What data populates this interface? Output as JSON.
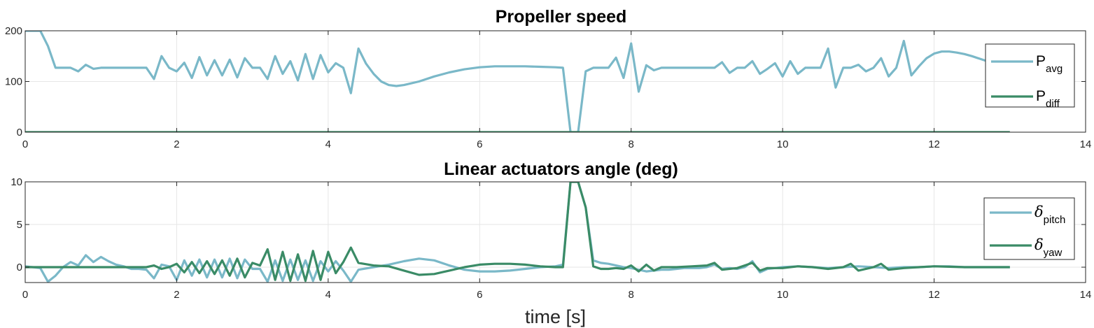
{
  "chart_data": [
    {
      "type": "line",
      "title": "Propeller speed",
      "xlabel": "",
      "ylabel": "",
      "xlim": [
        0,
        14
      ],
      "ylim": [
        0,
        200
      ],
      "xticks": [
        0,
        2,
        4,
        6,
        8,
        10,
        12,
        14
      ],
      "yticks": [
        0,
        100,
        200
      ],
      "grid": true,
      "legend_position": "right",
      "series": [
        {
          "name": "P_avg",
          "label_main": "P",
          "label_sub": "avg",
          "color": "#7ab8c8",
          "x": [
            0,
            0.1,
            0.2,
            0.3,
            0.4,
            0.5,
            0.6,
            0.7,
            0.8,
            0.9,
            1.0,
            1.1,
            1.2,
            1.3,
            1.4,
            1.5,
            1.6,
            1.7,
            1.8,
            1.9,
            2.0,
            2.1,
            2.2,
            2.3,
            2.4,
            2.5,
            2.6,
            2.7,
            2.8,
            2.9,
            3.0,
            3.1,
            3.2,
            3.3,
            3.4,
            3.5,
            3.6,
            3.7,
            3.8,
            3.9,
            4.0,
            4.1,
            4.2,
            4.3,
            4.4,
            4.5,
            4.6,
            4.7,
            4.8,
            4.9,
            5.0,
            5.2,
            5.4,
            5.6,
            5.8,
            6.0,
            6.2,
            6.4,
            6.6,
            6.8,
            7.0,
            7.1,
            7.2,
            7.3,
            7.4,
            7.5,
            7.6,
            7.7,
            7.8,
            7.9,
            8.0,
            8.1,
            8.2,
            8.3,
            8.4,
            8.5,
            8.6,
            8.7,
            8.8,
            8.9,
            9.0,
            9.1,
            9.2,
            9.3,
            9.4,
            9.5,
            9.6,
            9.7,
            9.8,
            9.9,
            10.0,
            10.1,
            10.2,
            10.3,
            10.4,
            10.5,
            10.6,
            10.7,
            10.8,
            10.9,
            11.0,
            11.1,
            11.2,
            11.3,
            11.4,
            11.5,
            11.6,
            11.7,
            11.8,
            11.9,
            12.0,
            12.1,
            12.2,
            12.3,
            12.4,
            12.5,
            12.6,
            12.7,
            12.8
          ],
          "y": [
            200,
            200,
            200,
            170,
            127,
            127,
            127,
            120,
            133,
            125,
            127,
            127,
            127,
            127,
            127,
            127,
            127,
            105,
            150,
            127,
            120,
            137,
            107,
            148,
            112,
            142,
            112,
            143,
            108,
            146,
            127,
            127,
            105,
            150,
            115,
            140,
            102,
            154,
            105,
            152,
            118,
            136,
            127,
            77,
            165,
            135,
            115,
            100,
            93,
            91,
            93,
            100,
            110,
            118,
            124,
            128,
            130,
            130,
            130,
            129,
            128,
            127,
            0,
            0,
            120,
            127,
            127,
            127,
            147,
            107,
            175,
            80,
            132,
            122,
            127,
            127,
            127,
            127,
            127,
            127,
            127,
            127,
            138,
            117,
            127,
            127,
            140,
            115,
            125,
            136,
            110,
            140,
            115,
            127,
            127,
            127,
            165,
            88,
            127,
            127,
            133,
            120,
            127,
            146,
            110,
            127,
            180,
            112,
            130,
            146,
            155,
            159,
            159,
            157,
            154,
            150,
            145,
            140,
            136
          ]
        },
        {
          "name": "P_diff",
          "label_main": "P",
          "label_sub": "diff",
          "color": "#3a8b66",
          "x": [
            0,
            13
          ],
          "y": [
            0,
            0
          ]
        }
      ]
    },
    {
      "type": "line",
      "title": "Linear actuators angle (deg)",
      "xlabel": "time [s]",
      "ylabel": "",
      "xlim": [
        0,
        14
      ],
      "ylim": [
        -1.8,
        10
      ],
      "xticks": [
        0,
        2,
        4,
        6,
        8,
        10,
        12,
        14
      ],
      "yticks": [
        0,
        5,
        10
      ],
      "grid": true,
      "legend_position": "right",
      "series": [
        {
          "name": "δ_pitch",
          "label_main": "δ",
          "label_sub": "pitch",
          "color": "#7ab8c8",
          "x": [
            0,
            0.1,
            0.2,
            0.3,
            0.4,
            0.5,
            0.6,
            0.7,
            0.8,
            0.9,
            1.0,
            1.1,
            1.2,
            1.3,
            1.4,
            1.5,
            1.6,
            1.7,
            1.8,
            1.9,
            2.0,
            2.1,
            2.2,
            2.3,
            2.4,
            2.5,
            2.6,
            2.7,
            2.8,
            2.9,
            3.0,
            3.1,
            3.2,
            3.3,
            3.4,
            3.5,
            3.6,
            3.7,
            3.8,
            3.9,
            4.0,
            4.1,
            4.2,
            4.3,
            4.4,
            4.6,
            4.8,
            5.0,
            5.2,
            5.4,
            5.6,
            5.8,
            6.0,
            6.2,
            6.4,
            6.6,
            6.8,
            7.0,
            7.1,
            7.2,
            7.3,
            7.4,
            7.5,
            7.6,
            7.7,
            7.8,
            7.9,
            8.0,
            8.1,
            8.2,
            8.3,
            8.4,
            8.5,
            8.6,
            8.7,
            8.8,
            8.9,
            9.0,
            9.1,
            9.2,
            9.3,
            9.4,
            9.5,
            9.6,
            9.7,
            9.8,
            9.9,
            10.0,
            10.2,
            10.4,
            10.6,
            10.8,
            11.0,
            11.2,
            11.4,
            11.6,
            11.8,
            12.0,
            12.2,
            12.4,
            12.6,
            12.8,
            13.0
          ],
          "y": [
            0.1,
            0,
            -0.1,
            -1.7,
            -1.0,
            0.0,
            0.6,
            0.2,
            1.4,
            0.6,
            1.2,
            0.7,
            0.3,
            0.1,
            -0.2,
            -0.2,
            -0.3,
            -1.3,
            0.3,
            0.1,
            -1.5,
            0.8,
            -1.0,
            0.9,
            -1.2,
            0.9,
            -1.2,
            1.0,
            -1.3,
            0.9,
            -0.2,
            -0.2,
            -1.7,
            0.8,
            -1.6,
            0.9,
            -1.5,
            0.8,
            -1.6,
            0.7,
            -0.5,
            0.7,
            -0.4,
            -1.7,
            -0.3,
            0.0,
            0.3,
            0.7,
            1.0,
            0.8,
            0.2,
            -0.3,
            -0.5,
            -0.5,
            -0.4,
            -0.2,
            0.0,
            0.1,
            0.3,
            10.0,
            10.0,
            7.0,
            0.8,
            0.5,
            0.4,
            0.2,
            0.0,
            -0.1,
            -0.3,
            -0.5,
            -0.4,
            -0.3,
            -0.3,
            -0.2,
            -0.1,
            -0.1,
            -0.1,
            0.0,
            0.3,
            -0.2,
            -0.1,
            -0.2,
            0.0,
            0.7,
            -0.6,
            -0.2,
            -0.1,
            0.0,
            0.1,
            0.0,
            -0.1,
            0.0,
            0.1,
            0.0,
            -0.1,
            0.0,
            0.0,
            0.1,
            0.1,
            0.0,
            0.0,
            0.0,
            0.0
          ]
        },
        {
          "name": "δ_yaw",
          "label_main": "δ",
          "label_sub": "yaw",
          "color": "#3a8b66",
          "x": [
            0,
            0.2,
            0.4,
            0.6,
            0.8,
            1.0,
            1.2,
            1.4,
            1.6,
            1.7,
            1.8,
            1.9,
            2.0,
            2.1,
            2.2,
            2.3,
            2.4,
            2.5,
            2.6,
            2.7,
            2.8,
            2.9,
            3.0,
            3.1,
            3.2,
            3.3,
            3.4,
            3.5,
            3.6,
            3.7,
            3.8,
            3.9,
            4.0,
            4.1,
            4.2,
            4.3,
            4.4,
            4.6,
            4.8,
            5.0,
            5.2,
            5.4,
            5.6,
            5.8,
            6.0,
            6.2,
            6.4,
            6.6,
            6.8,
            7.0,
            7.1,
            7.2,
            7.3,
            7.4,
            7.5,
            7.6,
            7.7,
            7.8,
            7.9,
            8.0,
            8.1,
            8.2,
            8.3,
            8.4,
            8.6,
            8.8,
            9.0,
            9.1,
            9.2,
            9.4,
            9.6,
            9.7,
            9.8,
            10.0,
            10.2,
            10.4,
            10.6,
            10.8,
            10.9,
            11.0,
            11.2,
            11.3,
            11.4,
            11.6,
            11.8,
            12.0,
            12.4,
            12.8,
            13.0
          ],
          "y": [
            0,
            0,
            0,
            0,
            0,
            0,
            0,
            0,
            0,
            0.2,
            -0.2,
            0.0,
            0.4,
            -0.6,
            0.6,
            -0.7,
            0.7,
            -0.8,
            0.8,
            -1.0,
            1.0,
            -1.2,
            0.5,
            0.2,
            2.1,
            -1.5,
            1.8,
            -1.6,
            1.5,
            -1.6,
            1.9,
            -1.5,
            1.8,
            -0.7,
            0.6,
            2.3,
            0.5,
            0.2,
            0.1,
            -0.4,
            -0.9,
            -0.8,
            -0.4,
            0.0,
            0.3,
            0.4,
            0.4,
            0.3,
            0.1,
            0.0,
            0.0,
            10.0,
            10.0,
            7.0,
            0.1,
            -0.2,
            -0.2,
            -0.1,
            -0.2,
            0.2,
            -0.5,
            0.3,
            -0.4,
            0.0,
            0.0,
            0.1,
            0.2,
            0.5,
            -0.3,
            -0.1,
            0.5,
            -0.4,
            -0.1,
            -0.1,
            0.1,
            0.0,
            -0.2,
            0.0,
            0.4,
            -0.4,
            0.0,
            0.4,
            -0.3,
            -0.1,
            0.0,
            0.1,
            0.0,
            0.0,
            0.0
          ]
        }
      ]
    }
  ]
}
